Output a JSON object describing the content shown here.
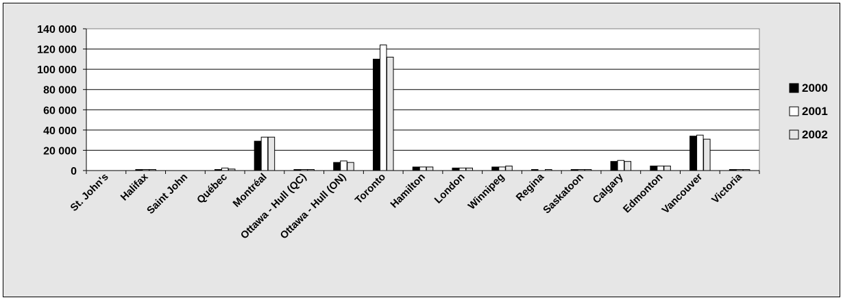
{
  "chart_data": {
    "type": "bar",
    "title": "",
    "xlabel": "",
    "ylabel": "",
    "ylim": [
      0,
      140000
    ],
    "yticks": [
      0,
      20000,
      40000,
      60000,
      80000,
      100000,
      120000,
      140000
    ],
    "ytick_labels": [
      "0",
      "20 000",
      "40 000",
      "60 000",
      "80 000",
      "100 000",
      "120 000",
      "140 000"
    ],
    "grid": true,
    "legend_position": "right",
    "categories": [
      "St. John's",
      "Halifax",
      "Saint John",
      "Québec",
      "Montréal",
      "Ottawa - Hull (QC)",
      "Ottawa - Hull (ON)",
      "Toronto",
      "Hamilton",
      "London",
      "Winnipeg",
      "Regina",
      "Saskatoon",
      "Calgary",
      "Edmonton",
      "Vancouver",
      "Victoria"
    ],
    "series": [
      {
        "name": "2000",
        "color": "#000000",
        "values": [
          0,
          1000,
          0,
          1000,
          29000,
          1000,
          8000,
          110000,
          3500,
          2500,
          3500,
          1000,
          1000,
          9000,
          4500,
          34000,
          1000
        ]
      },
      {
        "name": "2001",
        "color": "#ffffff",
        "values": [
          0,
          1000,
          0,
          2500,
          33000,
          1000,
          9500,
          124000,
          3500,
          2500,
          3500,
          0,
          1000,
          10000,
          4500,
          35000,
          1000
        ]
      },
      {
        "name": "2002",
        "color": "#e6e6e6",
        "values": [
          0,
          1000,
          0,
          1500,
          33000,
          1000,
          8000,
          112000,
          3500,
          2500,
          4500,
          1000,
          1000,
          9000,
          4500,
          31000,
          1000
        ]
      }
    ]
  }
}
